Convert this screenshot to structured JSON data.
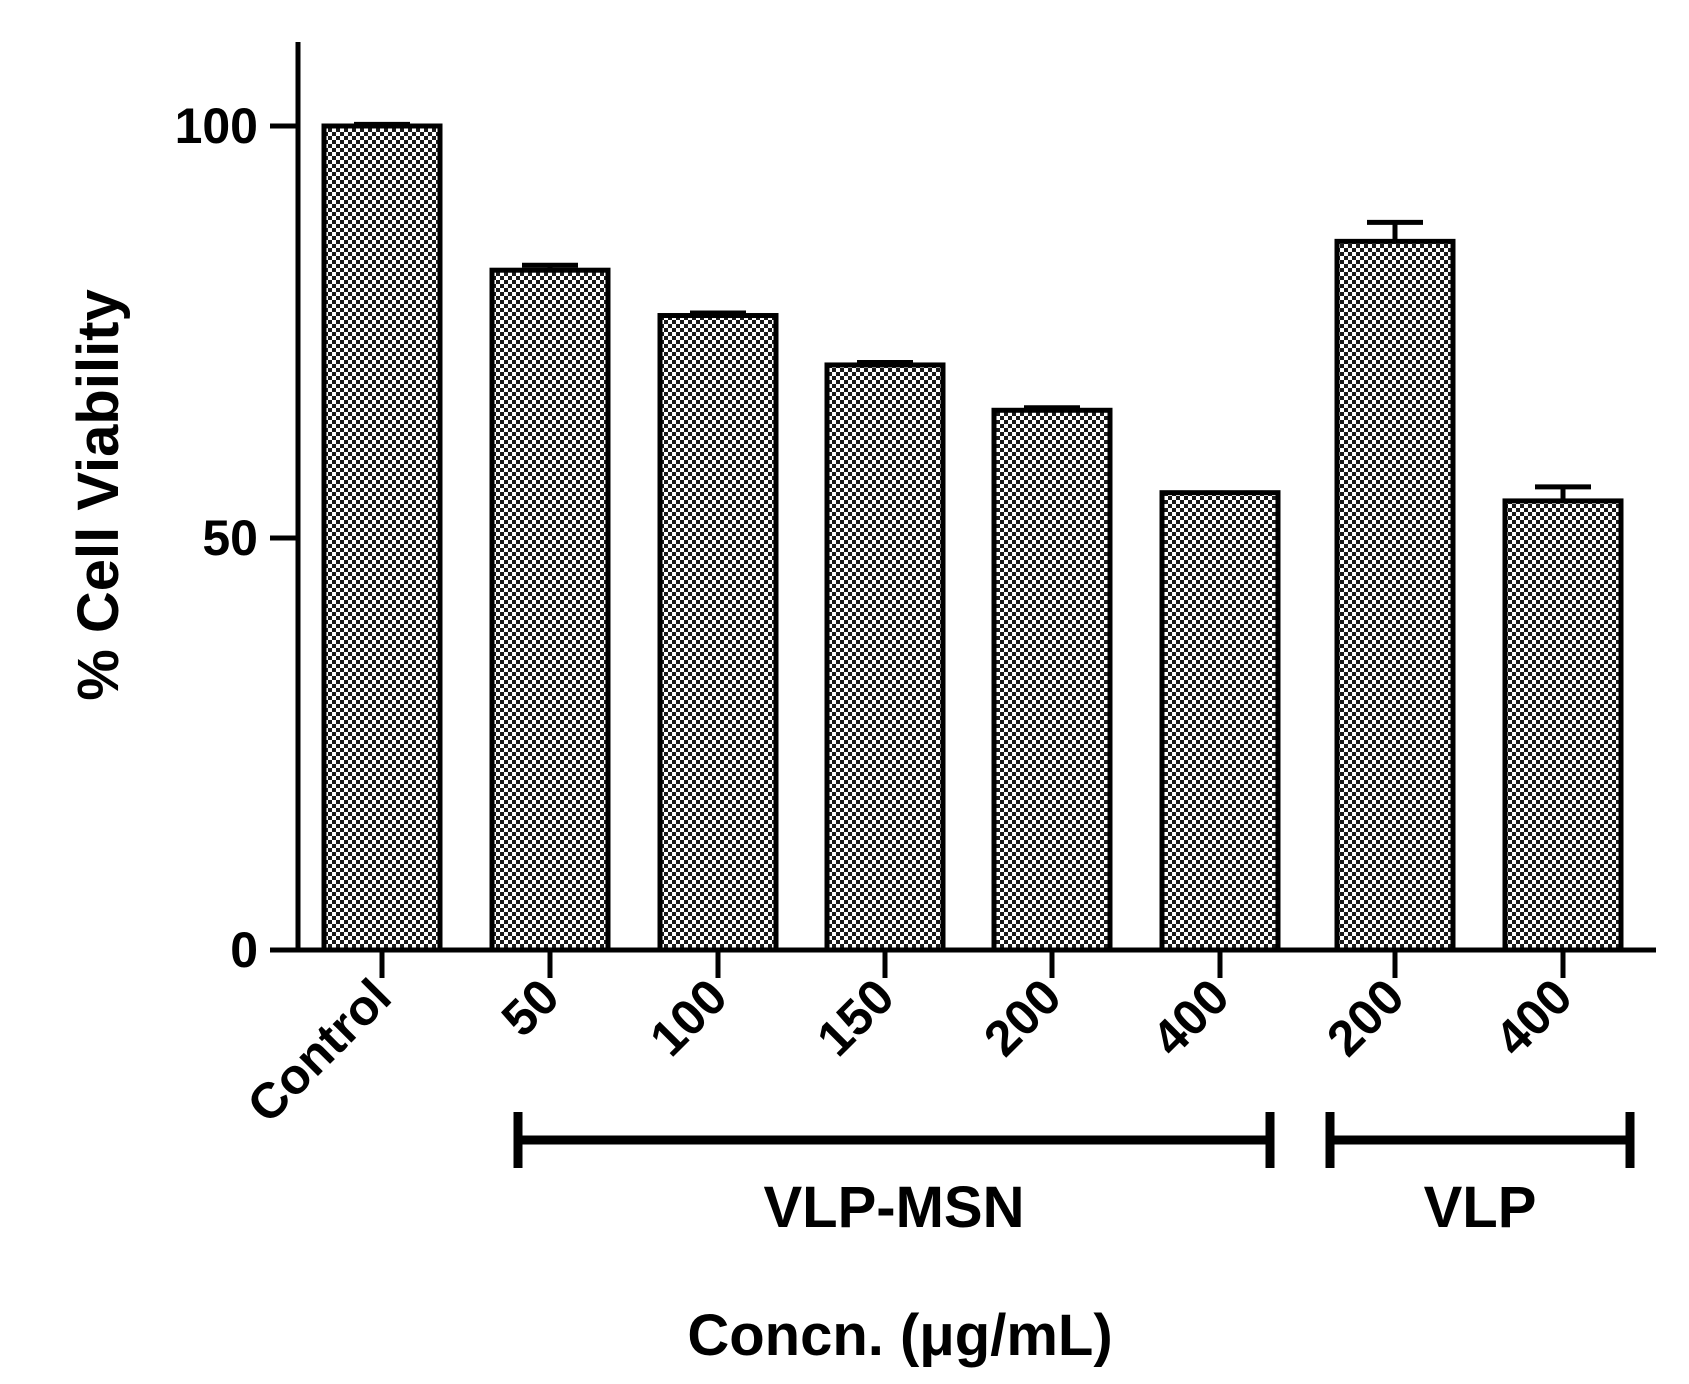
{
  "chart_data": {
    "type": "bar",
    "title": "",
    "xlabel": "Concn. (μg/mL)",
    "ylabel": "% Cell Viability",
    "ylim": [
      0,
      110
    ],
    "yticks": [
      "0",
      "50",
      "100"
    ],
    "grid": false,
    "legend": "none",
    "bar_pattern": "checkerboard",
    "categories": [
      "Control",
      "50",
      "100",
      "150",
      "200",
      "400",
      "200",
      "400"
    ],
    "values": [
      100,
      82.5,
      77,
      71,
      65.5,
      55.5,
      86,
      54.5
    ],
    "errors": [
      0.2,
      0.6,
      0.3,
      0.3,
      0.3,
      0,
      2.3,
      1.7
    ],
    "groups": [
      {
        "label": "VLP-MSN",
        "start": 1,
        "end": 5
      },
      {
        "label": "VLP",
        "start": 6,
        "end": 7
      }
    ]
  }
}
